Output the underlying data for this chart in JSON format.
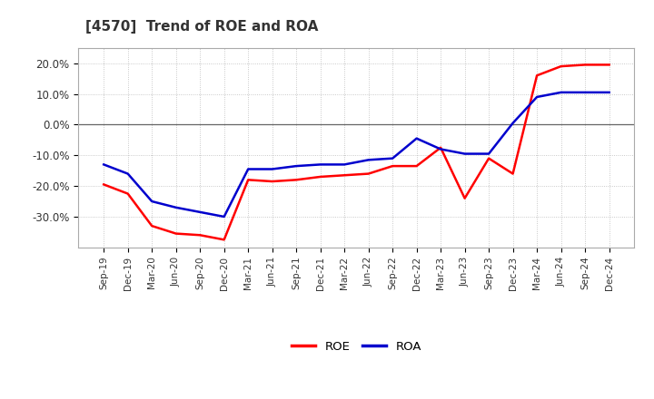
{
  "title": "[4570]  Trend of ROE and ROA",
  "labels": [
    "Sep-19",
    "Dec-19",
    "Mar-20",
    "Jun-20",
    "Sep-20",
    "Dec-20",
    "Mar-21",
    "Jun-21",
    "Sep-21",
    "Dec-21",
    "Mar-22",
    "Jun-22",
    "Sep-22",
    "Dec-22",
    "Mar-23",
    "Jun-23",
    "Sep-23",
    "Dec-23",
    "Mar-24",
    "Jun-24",
    "Sep-24",
    "Dec-24"
  ],
  "ROE": [
    -19.5,
    -22.5,
    -33.0,
    -35.5,
    -36.0,
    -37.5,
    -18.0,
    -18.5,
    -18.0,
    -17.0,
    -16.5,
    -16.0,
    -13.5,
    -13.5,
    -7.5,
    -24.0,
    -11.0,
    -16.0,
    16.0,
    19.0,
    19.5,
    19.5
  ],
  "ROA": [
    -13.0,
    -16.0,
    -25.0,
    -27.0,
    -28.5,
    -30.0,
    -14.5,
    -14.5,
    -13.5,
    -13.0,
    -13.0,
    -11.5,
    -11.0,
    -4.5,
    -8.0,
    -9.5,
    -9.5,
    0.5,
    9.0,
    10.5,
    10.5,
    10.5
  ],
  "roe_color": "#FF0000",
  "roa_color": "#0000CD",
  "bg_color": "#FFFFFF",
  "ylim": [
    -40,
    25
  ],
  "yticks": [
    -30,
    -20,
    -10,
    0,
    10,
    20
  ],
  "ytick_labels": [
    "-30.0%",
    "-20.0%",
    "-10.0%",
    "0.0%",
    "10.0%",
    "20.0%"
  ],
  "line_width": 1.8,
  "grid_color": "#BBBBBB",
  "spine_color": "#AAAAAA"
}
